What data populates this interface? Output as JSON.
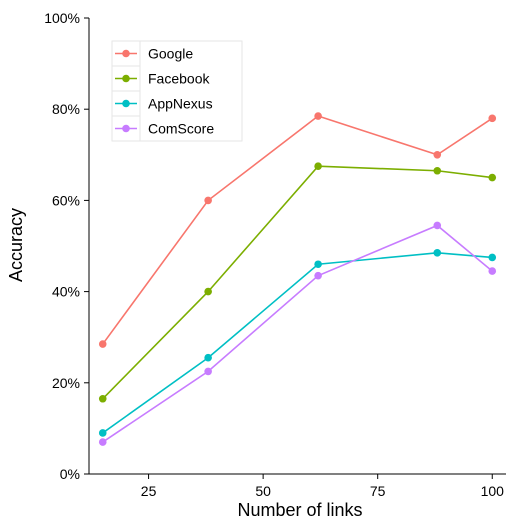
{
  "chart_data": {
    "type": "line",
    "xlabel": "Number of links",
    "ylabel": "Accuracy",
    "x": [
      15,
      38,
      62,
      88,
      100
    ],
    "xlim": [
      12,
      103
    ],
    "ylim": [
      0,
      100
    ],
    "x_ticks": [
      {
        "value": 25,
        "label": "25"
      },
      {
        "value": 50,
        "label": "50"
      },
      {
        "value": 75,
        "label": "75"
      },
      {
        "value": 100,
        "label": "100"
      }
    ],
    "y_ticks": [
      {
        "value": 0,
        "label": "0%"
      },
      {
        "value": 20,
        "label": "20%"
      },
      {
        "value": 40,
        "label": "40%"
      },
      {
        "value": 60,
        "label": "60%"
      },
      {
        "value": 80,
        "label": "80%"
      },
      {
        "value": 100,
        "label": "100%"
      }
    ],
    "grid": false,
    "legend_position": "top-left",
    "series": [
      {
        "name": "Google",
        "color": "#F8766D",
        "values": [
          28.5,
          60,
          78.5,
          70,
          78
        ]
      },
      {
        "name": "Facebook",
        "color": "#7CAE00",
        "values": [
          16.5,
          40,
          67.5,
          66.5,
          65
        ]
      },
      {
        "name": "AppNexus",
        "color": "#00BFC4",
        "values": [
          9,
          25.5,
          46,
          48.5,
          47.5
        ]
      },
      {
        "name": "ComScore",
        "color": "#C77CFF",
        "values": [
          7,
          22.5,
          43.5,
          54.5,
          44.5
        ]
      }
    ]
  }
}
